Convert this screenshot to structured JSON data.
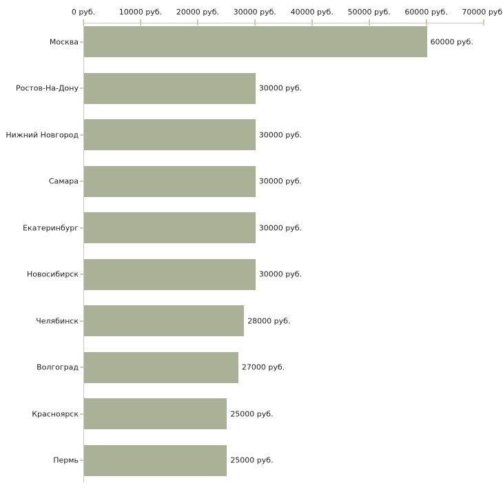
{
  "chart_data": {
    "type": "bar",
    "orientation": "horizontal",
    "title": "",
    "xlabel": "",
    "ylabel": "",
    "xlim": [
      0,
      70000
    ],
    "x_ticks": [
      0,
      10000,
      20000,
      30000,
      40000,
      50000,
      60000,
      70000
    ],
    "x_tick_labels": [
      "0 руб.",
      "10000 руб.",
      "20000 руб.",
      "30000 руб.",
      "40000 руб.",
      "50000 руб.",
      "60000 руб.",
      "70000 руб."
    ],
    "categories": [
      "Москва",
      "Ростов-На-Дону",
      "Нижний Новгород",
      "Самара",
      "Екатеринбург",
      "Новосибирск",
      "Челябинск",
      "Волгоград",
      "Красноярск",
      "Пермь"
    ],
    "values": [
      60000,
      30000,
      30000,
      30000,
      30000,
      30000,
      28000,
      27000,
      25000,
      25000
    ],
    "value_labels": [
      "60000 руб.",
      "30000 руб.",
      "30000 руб.",
      "30000 руб.",
      "30000 руб.",
      "30000 руб.",
      "28000 руб.",
      "27000 руб.",
      "25000 руб.",
      "25000 руб."
    ],
    "unit": "руб.",
    "grid": false,
    "legend": false,
    "colors": {
      "bar": "#abb197",
      "axis_line": "#c6c6c6",
      "tick_mark": "#d3cfa4",
      "text": "#1f1f1f",
      "background": "#ffffff"
    }
  }
}
